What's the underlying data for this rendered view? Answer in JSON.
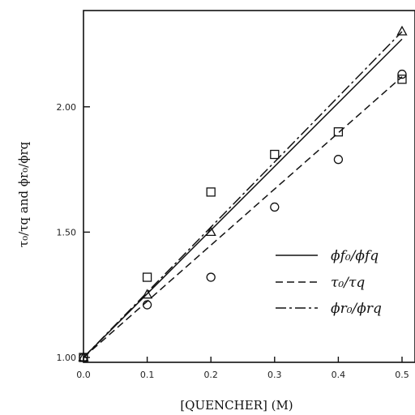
{
  "chart_data": {
    "type": "scatter",
    "xlabel": "[QUENCHER] (M)",
    "ylabel": "τ₀/τq and ϕr₀/ϕrq",
    "xlim": [
      0.0,
      0.5
    ],
    "ylim": [
      1.0,
      2.3
    ],
    "x_ticks": [
      "0.0",
      "0.1",
      "0.2",
      "0.3",
      "0.4",
      "0.5"
    ],
    "y_ticks": [
      "1.00",
      "1.50",
      "2.00"
    ],
    "grid": false,
    "legend_position": "right",
    "series": [
      {
        "name": "ϕf₀/ϕfq",
        "marker": "square",
        "line_style": "solid",
        "points": [
          [
            0.0,
            1.0
          ],
          [
            0.1,
            1.32
          ],
          [
            0.2,
            1.66
          ],
          [
            0.3,
            1.81
          ],
          [
            0.4,
            1.9
          ],
          [
            0.5,
            2.11
          ]
        ],
        "fit": [
          [
            0.0,
            1.0
          ],
          [
            0.5,
            2.27
          ]
        ]
      },
      {
        "name": "τ₀/τq",
        "marker": "circle",
        "line_style": "dashed",
        "points": [
          [
            0.0,
            1.0
          ],
          [
            0.1,
            1.21
          ],
          [
            0.2,
            1.32
          ],
          [
            0.3,
            1.6
          ],
          [
            0.4,
            1.79
          ],
          [
            0.5,
            2.13
          ]
        ],
        "fit": [
          [
            0.0,
            1.0
          ],
          [
            0.5,
            2.12
          ]
        ]
      },
      {
        "name": "ϕr₀/ϕrq",
        "marker": "triangle",
        "line_style": "dashdot",
        "points": [
          [
            0.0,
            1.0
          ],
          [
            0.1,
            1.25
          ],
          [
            0.2,
            1.5
          ],
          [
            0.5,
            2.3
          ]
        ],
        "fit": [
          [
            0.0,
            1.0
          ],
          [
            0.5,
            2.3
          ]
        ]
      }
    ]
  }
}
